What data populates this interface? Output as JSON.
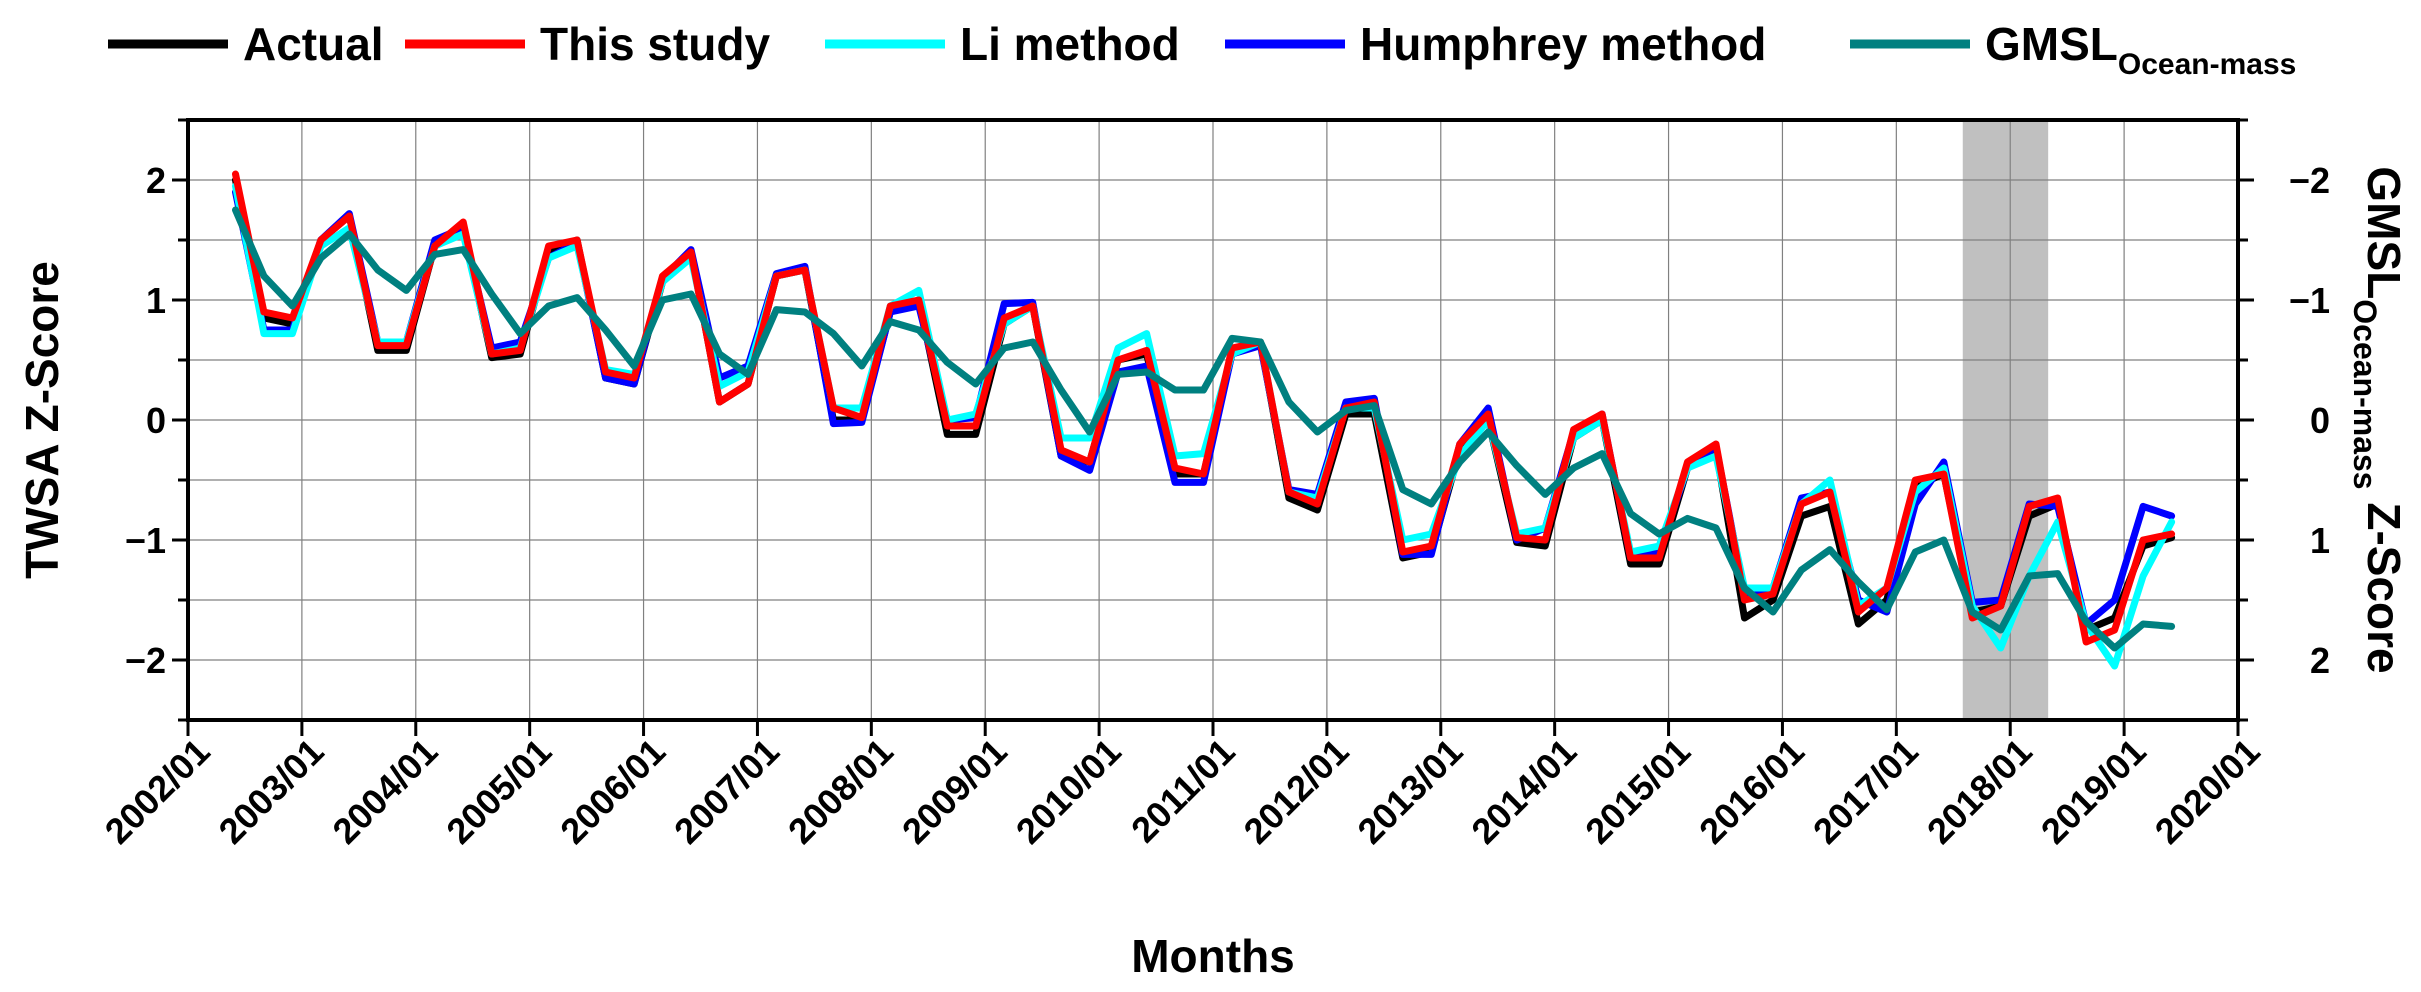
{
  "chart_data": {
    "type": "line",
    "xlabel": "Months",
    "ylabel_left": "TWSA Z-Score",
    "ylabel_right_main": "GMSL",
    "ylabel_right_sub": "Ocean-mass",
    "ylabel_right_suffix": " Z-Score",
    "x_ticks": [
      "2002/01",
      "2003/01",
      "2004/01",
      "2005/01",
      "2006/01",
      "2007/01",
      "2008/01",
      "2009/01",
      "2010/01",
      "2011/01",
      "2012/01",
      "2013/01",
      "2014/01",
      "2015/01",
      "2016/01",
      "2017/01",
      "2018/01",
      "2019/01",
      "2020/01"
    ],
    "x_range": [
      "2002/01",
      "2020/01"
    ],
    "y_left_range": [
      -2.5,
      2.5
    ],
    "y_left_ticks": [
      "2",
      "1",
      "0",
      "−1",
      "−2"
    ],
    "y_right_ticks": [
      "−2",
      "−1",
      "0",
      "1",
      "2"
    ],
    "y_right_inverted": true,
    "grid": true,
    "legend_position": "top",
    "shaded_region": [
      "2017/08",
      "2018/05"
    ],
    "colors": {
      "actual": "#000000",
      "this_study": "#ff0000",
      "li": "#00ffff",
      "humphrey": "#0000ff",
      "gmsl": "#008080",
      "shade": "#c0c0c0"
    },
    "legend": [
      {
        "key": "actual",
        "label": "Actual",
        "sub": ""
      },
      {
        "key": "this_study",
        "label": "This study",
        "sub": ""
      },
      {
        "key": "li",
        "label": "Li method",
        "sub": ""
      },
      {
        "key": "humphrey",
        "label": "Humphrey method",
        "sub": ""
      },
      {
        "key": "gmsl",
        "label": "GMSL",
        "sub": "Ocean-mass"
      }
    ],
    "x": [
      "2002/06",
      "2002/09",
      "2002/12",
      "2003/03",
      "2003/06",
      "2003/09",
      "2003/12",
      "2004/03",
      "2004/06",
      "2004/09",
      "2004/12",
      "2005/03",
      "2005/06",
      "2005/09",
      "2005/12",
      "2006/03",
      "2006/06",
      "2006/09",
      "2006/12",
      "2007/03",
      "2007/06",
      "2007/09",
      "2007/12",
      "2008/03",
      "2008/06",
      "2008/09",
      "2008/12",
      "2009/03",
      "2009/06",
      "2009/09",
      "2009/12",
      "2010/03",
      "2010/06",
      "2010/09",
      "2010/12",
      "2011/03",
      "2011/06",
      "2011/09",
      "2011/12",
      "2012/03",
      "2012/06",
      "2012/09",
      "2012/12",
      "2013/03",
      "2013/06",
      "2013/09",
      "2013/12",
      "2014/03",
      "2014/06",
      "2014/09",
      "2014/12",
      "2015/03",
      "2015/06",
      "2015/09",
      "2015/12",
      "2016/03",
      "2016/06",
      "2016/09",
      "2016/12",
      "2017/03",
      "2017/06",
      "2017/09",
      "2017/12",
      "2018/03",
      "2018/06",
      "2018/09",
      "2018/12",
      "2019/03",
      "2019/06"
    ],
    "series": [
      {
        "key": "actual",
        "name": "Actual",
        "values": [
          2.0,
          0.85,
          0.8,
          1.5,
          1.7,
          0.58,
          0.58,
          1.45,
          1.6,
          0.52,
          0.55,
          1.4,
          1.5,
          0.35,
          0.3,
          1.15,
          1.4,
          0.15,
          0.3,
          1.2,
          1.25,
          0.0,
          0.0,
          0.9,
          1.0,
          -0.12,
          -0.12,
          0.8,
          0.95,
          -0.3,
          -0.35,
          0.5,
          0.55,
          -0.45,
          -0.45,
          0.55,
          0.65,
          -0.65,
          -0.75,
          0.05,
          0.05,
          -1.15,
          -1.1,
          -0.25,
          0.0,
          -1.02,
          -1.05,
          -0.15,
          0.0,
          -1.2,
          -1.2,
          -0.4,
          -0.25,
          -1.65,
          -1.5,
          -0.8,
          -0.72,
          -1.7,
          -1.5,
          -0.55,
          -0.45,
          -1.6,
          -1.55,
          -0.8,
          -0.7,
          -1.75,
          -1.65,
          -1.05,
          -0.98
        ]
      },
      {
        "key": "this_study",
        "name": "This study",
        "values": [
          2.05,
          0.9,
          0.85,
          1.5,
          1.7,
          0.62,
          0.62,
          1.45,
          1.65,
          0.55,
          0.58,
          1.45,
          1.5,
          0.4,
          0.35,
          1.2,
          1.4,
          0.15,
          0.3,
          1.2,
          1.25,
          0.1,
          0.02,
          0.95,
          1.0,
          -0.05,
          -0.05,
          0.85,
          0.95,
          -0.25,
          -0.35,
          0.5,
          0.58,
          -0.4,
          -0.45,
          0.6,
          0.65,
          -0.6,
          -0.7,
          0.1,
          0.15,
          -1.1,
          -1.05,
          -0.2,
          0.05,
          -0.98,
          -1.0,
          -0.08,
          0.05,
          -1.15,
          -1.15,
          -0.35,
          -0.2,
          -1.5,
          -1.45,
          -0.7,
          -0.6,
          -1.6,
          -1.4,
          -0.5,
          -0.45,
          -1.65,
          -1.55,
          -0.72,
          -0.65,
          -1.85,
          -1.75,
          -1.0,
          -0.95
        ]
      },
      {
        "key": "li",
        "name": "Li method",
        "values": [
          1.95,
          0.72,
          0.72,
          1.45,
          1.6,
          0.65,
          0.65,
          1.45,
          1.55,
          0.55,
          0.6,
          1.35,
          1.45,
          0.42,
          0.38,
          1.15,
          1.35,
          0.28,
          0.4,
          1.2,
          1.25,
          0.1,
          0.1,
          0.95,
          1.08,
          0.0,
          0.05,
          0.8,
          0.95,
          -0.15,
          -0.15,
          0.6,
          0.72,
          -0.3,
          -0.28,
          0.55,
          0.65,
          -0.6,
          -0.65,
          0.1,
          0.1,
          -1.0,
          -0.95,
          -0.3,
          0.0,
          -0.95,
          -0.9,
          -0.15,
          0.0,
          -1.1,
          -1.05,
          -0.4,
          -0.3,
          -1.4,
          -1.4,
          -0.7,
          -0.5,
          -1.55,
          -1.4,
          -0.6,
          -0.4,
          -1.55,
          -1.9,
          -1.3,
          -0.85,
          -1.7,
          -2.05,
          -1.3,
          -0.85
        ]
      },
      {
        "key": "humphrey",
        "name": "Humphrey method",
        "values": [
          1.9,
          0.75,
          0.75,
          1.5,
          1.72,
          0.65,
          0.65,
          1.5,
          1.6,
          0.6,
          0.65,
          1.35,
          1.48,
          0.35,
          0.3,
          1.18,
          1.42,
          0.35,
          0.45,
          1.22,
          1.28,
          -0.03,
          -0.02,
          0.9,
          0.95,
          0.0,
          0.02,
          0.97,
          0.98,
          -0.3,
          -0.42,
          0.4,
          0.45,
          -0.52,
          -0.52,
          0.55,
          0.62,
          -0.58,
          -0.62,
          0.15,
          0.18,
          -1.12,
          -1.12,
          -0.2,
          0.1,
          -1.0,
          -0.9,
          -0.1,
          0.05,
          -1.15,
          -1.1,
          -0.4,
          -0.22,
          -1.45,
          -1.4,
          -0.65,
          -0.6,
          -1.5,
          -1.6,
          -0.7,
          -0.35,
          -1.52,
          -1.5,
          -0.7,
          -0.72,
          -1.7,
          -1.5,
          -0.72,
          -0.8
        ]
      },
      {
        "key": "gmsl",
        "name": "GMSL Ocean-mass",
        "values": [
          -1.75,
          -1.2,
          -0.95,
          -1.35,
          -1.55,
          -1.25,
          -1.08,
          -1.38,
          -1.42,
          -1.05,
          -0.72,
          -0.95,
          -1.02,
          -0.75,
          -0.45,
          -1.0,
          -1.05,
          -0.55,
          -0.38,
          -0.92,
          -0.9,
          -0.72,
          -0.45,
          -0.82,
          -0.75,
          -0.48,
          -0.3,
          -0.6,
          -0.65,
          -0.25,
          0.1,
          -0.38,
          -0.4,
          -0.25,
          -0.25,
          -0.68,
          -0.65,
          -0.15,
          0.1,
          -0.08,
          -0.12,
          0.58,
          0.7,
          0.35,
          0.1,
          0.38,
          0.62,
          0.4,
          0.28,
          0.78,
          0.95,
          0.82,
          0.9,
          1.4,
          1.6,
          1.25,
          1.08,
          1.35,
          1.58,
          1.1,
          1.0,
          1.6,
          1.75,
          1.3,
          1.28,
          1.68,
          1.9,
          1.7,
          1.72
        ]
      }
    ]
  }
}
